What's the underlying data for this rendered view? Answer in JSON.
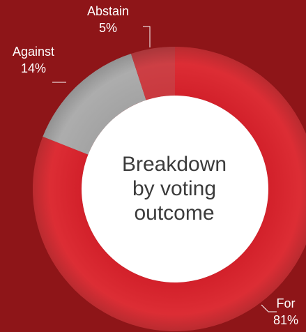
{
  "chart_data": {
    "type": "pie",
    "variant": "donut",
    "title": "Breakdown\nby voting\noutcome",
    "categories": [
      "For",
      "Abstain",
      "Against"
    ],
    "values": [
      81,
      5,
      14
    ],
    "labels": [
      "81%",
      "5%",
      "14%"
    ],
    "colors": [
      "#d2202a",
      "#c9393f",
      "#a3a3a3"
    ],
    "gradient_light": [
      "#e2343a",
      "#cf4247",
      "#b2b2b2"
    ],
    "legend": "callouts"
  },
  "colors": {
    "background": "#8e1518",
    "center_fill": "#ffffff",
    "label_text": "#ffffff",
    "center_text": "#3b3b3b",
    "leader_line": "#ffffff"
  }
}
